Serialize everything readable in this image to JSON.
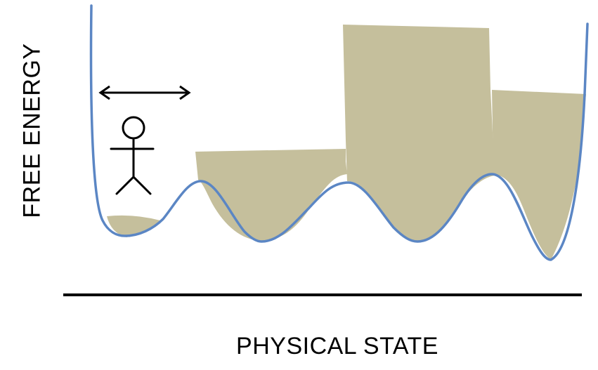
{
  "diagram": {
    "x_axis_label": "PHYSICAL STATE",
    "y_axis_label": "FREE ENERGY",
    "colors": {
      "curve": "#5b86c4",
      "fill": "#c5bf9c",
      "axis": "#000000",
      "figure": "#000000",
      "background": "#ffffff"
    },
    "icons": {
      "figure": "stick-figure-icon",
      "movement": "double-arrow-icon"
    }
  }
}
